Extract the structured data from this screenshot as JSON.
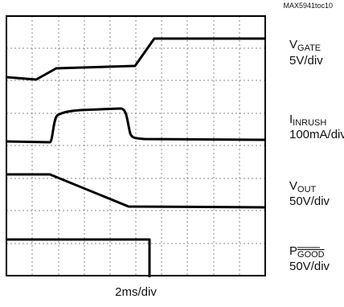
{
  "figure_id": "MAX5941toc10",
  "traces": [
    {
      "label": "V",
      "subscript": "GATE",
      "scale": "5V/div"
    },
    {
      "label": "I",
      "subscript": "INRUSH",
      "scale": "100mA/div"
    },
    {
      "label": "V",
      "subscript": "OUT",
      "scale": "50V/div"
    },
    {
      "label": "P",
      "subscript": "GOOD",
      "scale": "50V/div"
    }
  ],
  "time_scale": "2ms/div"
}
